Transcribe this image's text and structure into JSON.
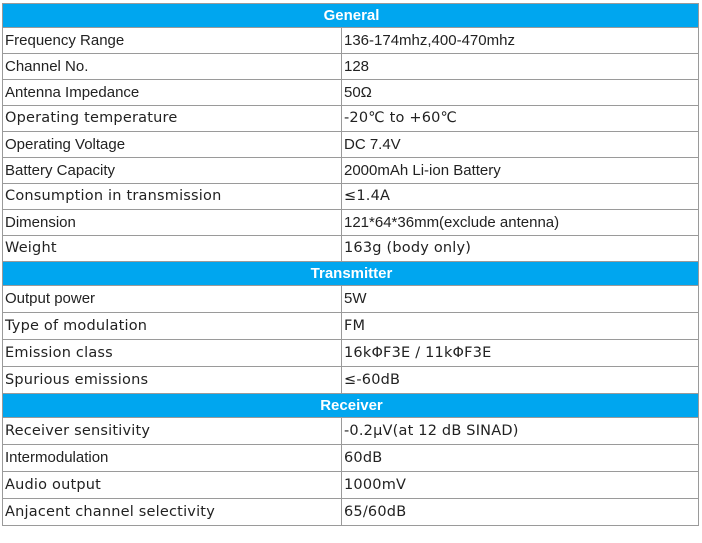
{
  "sections": [
    {
      "title": "General",
      "rows": [
        {
          "label": "Frequency Range",
          "value": "136-174mhz,400-470mhz"
        },
        {
          "label": "Channel No.",
          "value": "128"
        },
        {
          "label": "Antenna Impedance",
          "value": "50Ω"
        },
        {
          "label": "Operating temperature",
          "value": "-20℃ to +60℃"
        },
        {
          "label": "Operating Voltage",
          "value": "DC 7.4V"
        },
        {
          "label": "Battery Capacity",
          "value": "2000mAh Li-ion Battery"
        },
        {
          "label": "Consumption in transmission",
          "value": "≤1.4A"
        },
        {
          "label": "Dimension",
          "value": "121*64*36mm(exclude antenna)"
        },
        {
          "label": "Weight",
          "value": "163g (body only)"
        }
      ]
    },
    {
      "title": "Transmitter",
      "rows": [
        {
          "label": "Output power",
          "value": "5W"
        },
        {
          "label": "Type of modulation",
          "value": "FM"
        },
        {
          "label": "Emission class",
          "value": "16kΦF3E / 11kΦF3E"
        },
        {
          "label": "Spurious emissions",
          "value": "≤-60dB"
        }
      ]
    },
    {
      "title": "Receiver",
      "rows": [
        {
          "label": "Receiver sensitivity",
          "value": "-0.2μV(at 12 dB SINAD)"
        },
        {
          "label": "Intermodulation",
          "value": "60dB"
        },
        {
          "label": "Audio output",
          "value": "1000mV"
        },
        {
          "label": "Anjacent channel selectivity",
          "value": "65/60dB"
        }
      ]
    }
  ],
  "colors": {
    "header_bg": "#00a6ef",
    "header_text": "#ffffff",
    "border": "#9a9a9a"
  }
}
